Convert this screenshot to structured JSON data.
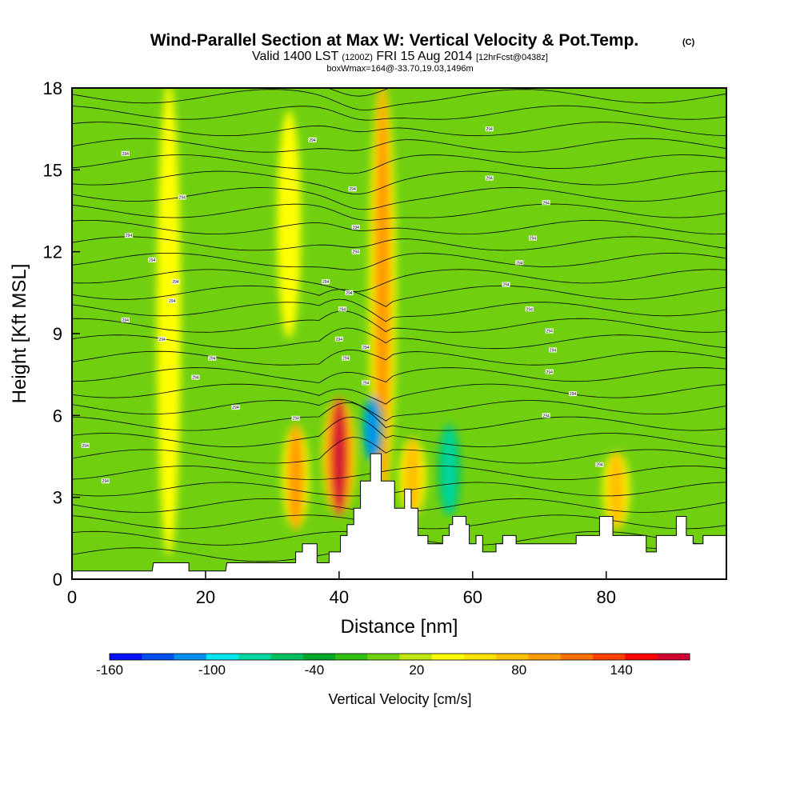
{
  "chart_data": {
    "type": "contour",
    "title": {
      "main": "Wind-Parallel Section at Max W: Vertical Velocity & Pot.Temp.",
      "copyright": "(C)",
      "valid_prefix": "Valid 1400 LST",
      "valid_utc": "(1200Z)",
      "valid_date": "FRI 15 Aug 2014",
      "forecast": "[12hrFcst@0438z]",
      "box_info": "boxWmax=164@-33.70,19.03,1496m"
    },
    "xlabel": "Distance [nm]",
    "ylabel": "Height [Kft MSL]",
    "xlim": [
      0,
      98
    ],
    "ylim": [
      0,
      18
    ],
    "x_ticks": [
      0,
      20,
      40,
      60,
      80
    ],
    "y_ticks": [
      0,
      3,
      6,
      9,
      12,
      15,
      18
    ],
    "colorbar": {
      "title": "Vertical Velocity [cm/s]",
      "tick_labels": [
        "-160",
        "-100",
        "-40",
        "20",
        "80",
        "140"
      ],
      "tick_values": [
        -160,
        -100,
        -40,
        20,
        80,
        140
      ],
      "range": [
        -160,
        180
      ],
      "colors": [
        "#0010ff",
        "#0050f0",
        "#0090f0",
        "#00e6f0",
        "#00d8a0",
        "#00c060",
        "#00a828",
        "#30c010",
        "#70d010",
        "#c0e610",
        "#ffff00",
        "#ffe200",
        "#ffc000",
        "#ff9c00",
        "#ff7000",
        "#ff4000",
        "#ff0000",
        "#d00030"
      ]
    },
    "vertical_velocity_features": [
      {
        "x": 40,
        "z_bottom": 2.5,
        "z_top": 6.5,
        "w": 164,
        "kind": "updraft maximum"
      },
      {
        "x": 46.5,
        "z_bottom": 3,
        "z_top": 18,
        "w": 100,
        "kind": "updraft column"
      },
      {
        "x": 45,
        "z_bottom": 4.5,
        "z_top": 6.5,
        "w": -120,
        "kind": "downdraft"
      },
      {
        "x": 56.5,
        "z_bottom": 2.5,
        "z_top": 5.5,
        "w": -70,
        "kind": "downdraft"
      },
      {
        "x": 33.5,
        "z_bottom": 2,
        "z_top": 5.5,
        "w": 90,
        "kind": "updraft"
      },
      {
        "x": 14.5,
        "z_bottom": 1,
        "z_top": 18,
        "w": 40,
        "kind": "updraft column"
      },
      {
        "x": 32.5,
        "z_bottom": 9,
        "z_top": 17,
        "w": 35,
        "kind": "updraft"
      },
      {
        "x": 51,
        "z_bottom": 2.5,
        "z_top": 5,
        "w": 70,
        "kind": "updraft"
      },
      {
        "x": 81.5,
        "z_bottom": 2,
        "z_top": 4.5,
        "w": 70,
        "kind": "updraft"
      }
    ],
    "terrain": [
      [
        0,
        0.3
      ],
      [
        12,
        0.3
      ],
      [
        12.2,
        0.6
      ],
      [
        17.5,
        0.6
      ],
      [
        17.5,
        0.3
      ],
      [
        23,
        0.3
      ],
      [
        23.2,
        0.6
      ],
      [
        33.5,
        0.6
      ],
      [
        33.5,
        1.0
      ],
      [
        34.5,
        1.0
      ],
      [
        34.5,
        1.3
      ],
      [
        36.7,
        1.3
      ],
      [
        36.7,
        0.6
      ],
      [
        38.5,
        0.6
      ],
      [
        38.5,
        1.0
      ],
      [
        40.2,
        1.0
      ],
      [
        40.2,
        1.6
      ],
      [
        41.2,
        1.6
      ],
      [
        41.2,
        2.0
      ],
      [
        42.2,
        2.0
      ],
      [
        42.2,
        2.6
      ],
      [
        43.2,
        2.6
      ],
      [
        43.2,
        3.6
      ],
      [
        44.7,
        3.6
      ],
      [
        44.7,
        4.6
      ],
      [
        46.3,
        4.6
      ],
      [
        46.3,
        3.6
      ],
      [
        48.3,
        3.6
      ],
      [
        48.3,
        2.6
      ],
      [
        49.8,
        2.6
      ],
      [
        49.8,
        3.3
      ],
      [
        50.8,
        3.3
      ],
      [
        50.8,
        2.6
      ],
      [
        51.8,
        2.6
      ],
      [
        51.8,
        1.6
      ],
      [
        53.3,
        1.6
      ],
      [
        53.3,
        1.3
      ],
      [
        55.5,
        1.3
      ],
      [
        55.5,
        1.6
      ],
      [
        56.5,
        1.6
      ],
      [
        56.5,
        2.0
      ],
      [
        57,
        2.0
      ],
      [
        57,
        2.3
      ],
      [
        59,
        2.3
      ],
      [
        59,
        2.0
      ],
      [
        59.5,
        2.0
      ],
      [
        59.5,
        1.3
      ],
      [
        60.5,
        1.3
      ],
      [
        60.5,
        1.6
      ],
      [
        61.5,
        1.6
      ],
      [
        61.5,
        1.0
      ],
      [
        63.5,
        1.0
      ],
      [
        63.5,
        1.3
      ],
      [
        64.5,
        1.3
      ],
      [
        64.5,
        1.6
      ],
      [
        66.5,
        1.6
      ],
      [
        66.5,
        1.3
      ],
      [
        75.5,
        1.3
      ],
      [
        75.5,
        1.6
      ],
      [
        79,
        1.6
      ],
      [
        79,
        2.3
      ],
      [
        81,
        2.3
      ],
      [
        81,
        1.6
      ],
      [
        86,
        1.6
      ],
      [
        86,
        1.0
      ],
      [
        87.5,
        1.0
      ],
      [
        87.5,
        1.6
      ],
      [
        90.5,
        1.6
      ],
      [
        90.5,
        2.3
      ],
      [
        92,
        2.3
      ],
      [
        92,
        1.6
      ],
      [
        93,
        1.6
      ],
      [
        93,
        1.3
      ],
      [
        94.5,
        1.3
      ],
      [
        94.5,
        1.6
      ],
      [
        98,
        1.6
      ]
    ],
    "theta_contours": {
      "count": 30,
      "label_value": 294,
      "labeled_positions": [
        [
          2,
          4.9
        ],
        [
          5,
          3.6
        ],
        [
          8,
          9.5
        ],
        [
          8,
          15.6
        ],
        [
          8.5,
          12.6
        ],
        [
          12,
          11.7
        ],
        [
          13.5,
          8.8
        ],
        [
          15,
          10.2
        ],
        [
          15.5,
          10.9
        ],
        [
          16.5,
          14.0
        ],
        [
          18.5,
          7.4
        ],
        [
          21,
          8.1
        ],
        [
          24.5,
          6.3
        ],
        [
          33.5,
          5.9
        ],
        [
          36,
          16.1
        ],
        [
          38,
          10.9
        ],
        [
          40,
          8.8
        ],
        [
          40.5,
          9.9
        ],
        [
          41,
          8.1
        ],
        [
          41.5,
          10.5
        ],
        [
          42,
          14.3
        ],
        [
          42.5,
          12.0
        ],
        [
          42.5,
          12.9
        ],
        [
          44,
          8.5
        ],
        [
          44,
          7.2
        ],
        [
          62.5,
          16.5
        ],
        [
          62.5,
          14.7
        ],
        [
          65,
          10.8
        ],
        [
          67,
          11.6
        ],
        [
          68.5,
          9.9
        ],
        [
          69,
          12.5
        ],
        [
          71,
          13.8
        ],
        [
          71,
          6.0
        ],
        [
          71.5,
          7.6
        ],
        [
          71.5,
          9.1
        ],
        [
          72,
          8.4
        ],
        [
          75,
          6.8
        ],
        [
          79,
          4.2
        ]
      ]
    }
  }
}
